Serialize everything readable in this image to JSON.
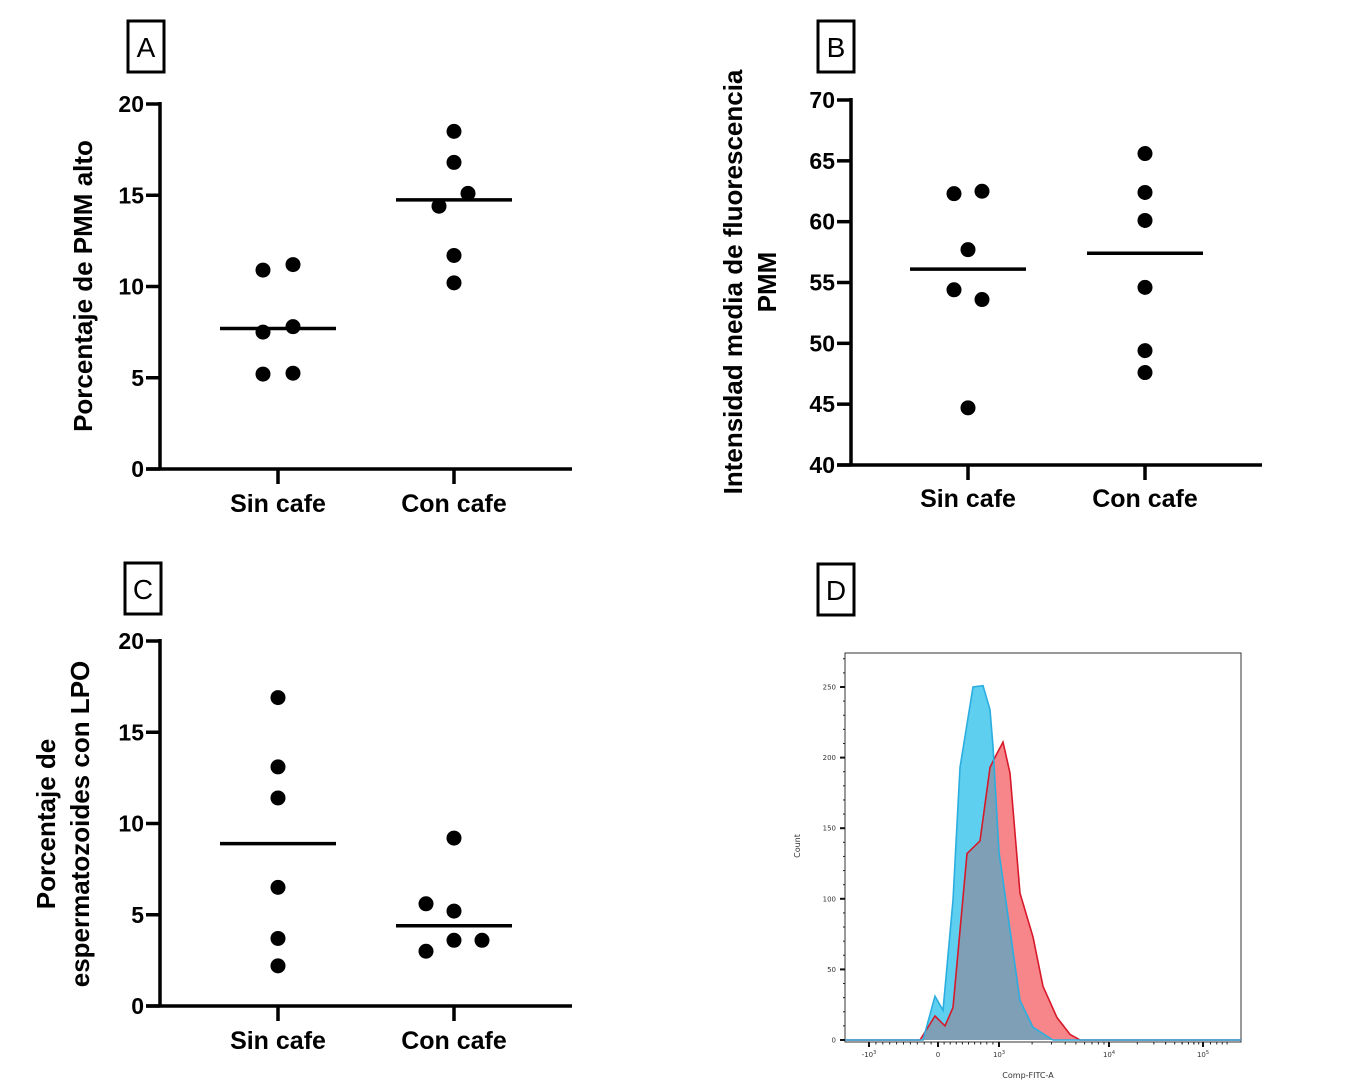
{
  "chart_data": [
    {
      "panel": "A",
      "type": "scatter",
      "title": "",
      "xlabel": "",
      "ylabel": "Porcentaje de PMM alto",
      "ylim": [
        0,
        20
      ],
      "yticks": [
        0,
        5,
        10,
        15,
        20
      ],
      "grid": false,
      "categories": [
        "Sin cafe",
        "Con cafe"
      ],
      "series": [
        {
          "name": "Sin cafe",
          "values": [
            10.9,
            11.2,
            7.5,
            7.8,
            5.2,
            5.25
          ],
          "median": 7.7
        },
        {
          "name": "Con cafe",
          "values": [
            18.5,
            16.8,
            15.1,
            14.4,
            11.7,
            10.2
          ],
          "median": 14.75
        }
      ]
    },
    {
      "panel": "B",
      "type": "scatter",
      "title": "",
      "xlabel": "",
      "ylabel": [
        "Intensidad media de fluorescencia",
        "PMM"
      ],
      "ylim": [
        40,
        70
      ],
      "yticks": [
        40,
        45,
        50,
        55,
        60,
        65,
        70
      ],
      "grid": false,
      "categories": [
        "Sin cafe",
        "Con cafe"
      ],
      "series": [
        {
          "name": "Sin cafe",
          "values": [
            62.3,
            62.5,
            57.7,
            54.4,
            53.6,
            44.7
          ],
          "median": 56.1
        },
        {
          "name": "Con cafe",
          "values": [
            65.6,
            62.4,
            60.1,
            54.6,
            49.4,
            47.6
          ],
          "median": 57.4
        }
      ]
    },
    {
      "panel": "C",
      "type": "scatter",
      "title": "",
      "xlabel": "",
      "ylabel": [
        "Porcentaje de",
        "espermatozoides con LPO"
      ],
      "ylim": [
        0,
        20
      ],
      "yticks": [
        0,
        5,
        10,
        15,
        20
      ],
      "grid": false,
      "categories": [
        "Sin cafe",
        "Con cafe"
      ],
      "series": [
        {
          "name": "Sin cafe",
          "values": [
            16.9,
            13.1,
            11.4,
            6.5,
            3.7,
            2.2
          ],
          "median": 8.9
        },
        {
          "name": "Con cafe",
          "values": [
            9.2,
            5.6,
            5.2,
            3.6,
            3.6,
            3.0
          ],
          "median": 4.4
        }
      ]
    },
    {
      "panel": "D",
      "type": "area",
      "title": "",
      "xlabel": "Comp-FITC-A",
      "ylabel": "Count",
      "ylim": [
        0,
        270
      ],
      "yticks": [
        0,
        50,
        100,
        150,
        200,
        250
      ],
      "xticks": [
        {
          "value": -1000,
          "label_base": "-10",
          "label_exp": "3"
        },
        {
          "value": 0,
          "label_base": "0",
          "label_exp": ""
        },
        {
          "value": 1000,
          "label_base": "10",
          "label_exp": "3"
        },
        {
          "value": 10000,
          "label_base": "10",
          "label_exp": "4"
        },
        {
          "value": 100000,
          "label_base": "10",
          "label_exp": "5"
        }
      ],
      "xscale": "biexponential",
      "grid": false,
      "series": [
        {
          "name": "histogram-red",
          "fill": "#f7868a",
          "stroke": "#d7192a",
          "points": [
            [
              -2000,
              0
            ],
            [
              -261,
              0
            ],
            [
              -43,
              17
            ],
            [
              115,
              10
            ],
            [
              246,
              23
            ],
            [
              475,
              132
            ],
            [
              689,
              141
            ],
            [
              852,
              193
            ],
            [
              967,
              203
            ],
            [
              1087,
              211
            ],
            [
              1259,
              189
            ],
            [
              1552,
              104
            ],
            [
              2036,
              73
            ],
            [
              2510,
              38
            ],
            [
              3360,
              16
            ],
            [
              4420,
              4
            ],
            [
              5450,
              0
            ],
            [
              300000,
              0
            ]
          ]
        },
        {
          "name": "histogram-blue",
          "fill": "#5fcff0",
          "stroke": "#2aaee0",
          "points": [
            [
              -2000,
              0
            ],
            [
              -217,
              0
            ],
            [
              -43,
              31
            ],
            [
              82,
              21
            ],
            [
              246,
              99
            ],
            [
              361,
              193
            ],
            [
              574,
              250
            ],
            [
              738,
              251
            ],
            [
              852,
              234
            ],
            [
              902,
              208
            ],
            [
              1000,
              133
            ],
            [
              1259,
              78
            ],
            [
              1552,
              28
            ],
            [
              2036,
              9
            ],
            [
              3090,
              0
            ],
            [
              300000,
              0
            ]
          ]
        }
      ],
      "overlap_fill": "#7f9fb6"
    }
  ],
  "panel_labels": [
    "A",
    "B",
    "C",
    "D"
  ]
}
